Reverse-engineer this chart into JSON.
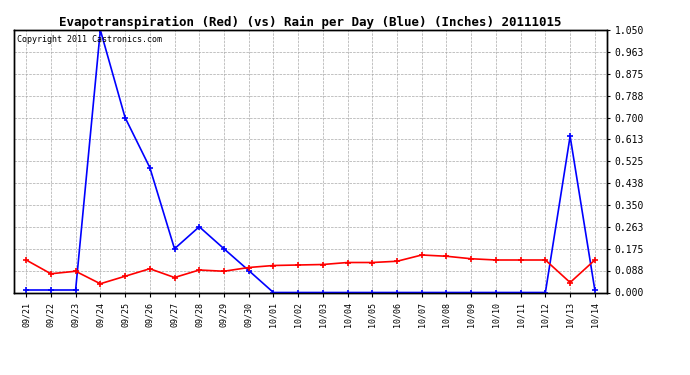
{
  "title": "Evapotranspiration (Red) (vs) Rain per Day (Blue) (Inches) 20111015",
  "copyright": "Copyright 2011 Castronics.com",
  "x_labels": [
    "09/21",
    "09/22",
    "09/23",
    "09/24",
    "09/25",
    "09/26",
    "09/27",
    "09/28",
    "09/29",
    "09/30",
    "10/01",
    "10/02",
    "10/03",
    "10/04",
    "10/05",
    "10/06",
    "10/07",
    "10/08",
    "10/09",
    "10/10",
    "10/11",
    "10/12",
    "10/13",
    "10/14"
  ],
  "blue_values": [
    0.01,
    0.01,
    0.01,
    1.05,
    0.7,
    0.5,
    0.175,
    0.263,
    0.175,
    0.088,
    0.0,
    0.0,
    0.0,
    0.0,
    0.0,
    0.0,
    0.0,
    0.0,
    0.0,
    0.0,
    0.0,
    0.0,
    0.625,
    0.01
  ],
  "red_values": [
    0.13,
    0.075,
    0.085,
    0.035,
    0.065,
    0.095,
    0.06,
    0.09,
    0.085,
    0.1,
    0.108,
    0.11,
    0.112,
    0.12,
    0.12,
    0.125,
    0.15,
    0.145,
    0.135,
    0.13,
    0.13,
    0.13,
    0.04,
    0.13
  ],
  "y_ticks": [
    0.0,
    0.088,
    0.175,
    0.263,
    0.35,
    0.438,
    0.525,
    0.613,
    0.7,
    0.788,
    0.875,
    0.963,
    1.05
  ],
  "ylim": [
    0.0,
    1.05
  ],
  "title_fontsize": 9,
  "copyright_fontsize": 6,
  "blue_color": "#0000ff",
  "red_color": "#ff0000",
  "background_color": "#ffffff",
  "grid_color": "#aaaaaa"
}
